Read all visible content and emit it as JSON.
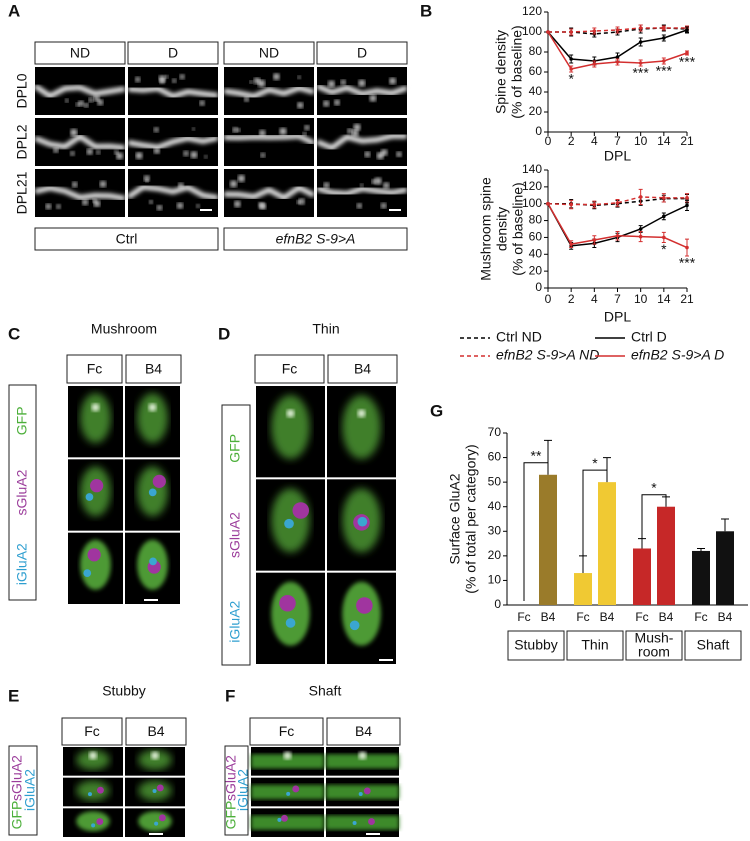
{
  "panel_labels": [
    "A",
    "B",
    "C",
    "D",
    "E",
    "F",
    "G"
  ],
  "panel_a": {
    "columns": [
      "ND",
      "D",
      "ND",
      "D"
    ],
    "rows": [
      "DPL0",
      "DPL2",
      "DPL21"
    ],
    "groups": [
      "Ctrl",
      "efnB2 S-9>A"
    ]
  },
  "panel_c": {
    "title": "Mushroom",
    "columns": [
      "Fc",
      "B4"
    ],
    "rows": [
      "GFP",
      "sGluA2",
      "iGluA2"
    ]
  },
  "panel_d": {
    "title": "Thin",
    "columns": [
      "Fc",
      "B4"
    ],
    "rows": [
      "GFP",
      "sGluA2",
      "iGluA2"
    ]
  },
  "panel_e": {
    "title": "Stubby",
    "columns": [
      "Fc",
      "B4"
    ],
    "rows": [
      "GFP",
      "sGluA2",
      "iGluA2"
    ]
  },
  "panel_f": {
    "title": "Shaft",
    "columns": [
      "Fc",
      "B4"
    ],
    "rows": [
      "GFP",
      "sGluA2",
      "iGluA2"
    ]
  },
  "chart_data": [
    {
      "type": "line",
      "y_label": [
        "Spine density",
        "(% of baseline)"
      ],
      "x_label": "DPL",
      "categories": [
        "0",
        "2",
        "4",
        "7",
        "10",
        "14",
        "21"
      ],
      "ylim": [
        0,
        120
      ],
      "yticks": [
        0,
        20,
        40,
        60,
        80,
        100,
        120
      ],
      "series": [
        {
          "name": "Ctrl ND",
          "color": "#000000",
          "dashed": true,
          "values": [
            100,
            100,
            98,
            100,
            103,
            104,
            103
          ],
          "errors": [
            0,
            4,
            3,
            3,
            4,
            3,
            3
          ]
        },
        {
          "name": "efnB2 S-9>A ND",
          "color": "#d32f2f",
          "dashed": true,
          "values": [
            100,
            100,
            101,
            102,
            104,
            104,
            104
          ],
          "errors": [
            0,
            3,
            3,
            3,
            3,
            2,
            2
          ]
        },
        {
          "name": "Ctrl D",
          "color": "#000000",
          "dashed": false,
          "values": [
            100,
            73,
            71,
            75,
            90,
            94,
            102
          ],
          "errors": [
            0,
            4,
            4,
            4,
            4,
            3,
            3
          ]
        },
        {
          "name": "efnB2 S-9>A D",
          "color": "#d32f2f",
          "dashed": false,
          "values": [
            100,
            63,
            68,
            70,
            69,
            71,
            79
          ],
          "errors": [
            0,
            3,
            3,
            3,
            3,
            3,
            2
          ]
        }
      ],
      "annotations": [
        {
          "text": "*",
          "x": "2"
        },
        {
          "text": "***",
          "x": "10"
        },
        {
          "text": "***",
          "x": "14"
        },
        {
          "text": "***",
          "x": "21"
        }
      ]
    },
    {
      "type": "line",
      "y_label": [
        "Mushroom spine",
        "density",
        "(% of baseline)"
      ],
      "x_label": "DPL",
      "categories": [
        "0",
        "2",
        "4",
        "7",
        "10",
        "14",
        "21"
      ],
      "ylim": [
        0,
        140
      ],
      "yticks": [
        0,
        20,
        40,
        60,
        80,
        100,
        120,
        140
      ],
      "series": [
        {
          "color": "#000000",
          "dashed": true,
          "values": [
            100,
            100,
            98,
            100,
            103,
            106,
            106
          ],
          "errors": [
            0,
            5,
            4,
            4,
            5,
            4,
            5
          ]
        },
        {
          "color": "#d32f2f",
          "dashed": true,
          "values": [
            100,
            99,
            99,
            101,
            108,
            107,
            107
          ],
          "errors": [
            0,
            5,
            4,
            4,
            9,
            5,
            5
          ]
        },
        {
          "color": "#000000",
          "dashed": false,
          "values": [
            100,
            50,
            53,
            60,
            70,
            85,
            98
          ],
          "errors": [
            0,
            4,
            5,
            5,
            4,
            4,
            6
          ]
        },
        {
          "color": "#d32f2f",
          "dashed": false,
          "values": [
            100,
            52,
            57,
            62,
            61,
            60,
            48
          ],
          "errors": [
            0,
            4,
            5,
            5,
            6,
            6,
            10
          ]
        }
      ],
      "annotations": [
        {
          "text": "*",
          "x": "14"
        },
        {
          "text": "***",
          "x": "21"
        }
      ]
    },
    {
      "type": "bar",
      "y_label": [
        "Surface GluA2",
        "(% of total per category)"
      ],
      "ylim": [
        0,
        70
      ],
      "yticks": [
        0,
        10,
        20,
        30,
        40,
        50,
        60,
        70
      ],
      "groups": [
        {
          "name": [
            "Stubby"
          ],
          "color": "#9a7b2a",
          "significance": "**",
          "bars": [
            {
              "label": "Fc",
              "value": 0,
              "error": null
            },
            {
              "label": "B4",
              "value": 53,
              "error": 14
            }
          ]
        },
        {
          "name": [
            "Thin"
          ],
          "color": "#f0c933",
          "significance": "*",
          "bars": [
            {
              "label": "Fc",
              "value": 13,
              "error": 7
            },
            {
              "label": "B4",
              "value": 50,
              "error": 10
            }
          ]
        },
        {
          "name": [
            "Mush-",
            "room"
          ],
          "color": "#c62828",
          "significance": "*",
          "bars": [
            {
              "label": "Fc",
              "value": 23,
              "error": 4
            },
            {
              "label": "B4",
              "value": 40,
              "error": 4
            }
          ]
        },
        {
          "name": [
            "Shaft"
          ],
          "color": "#111111",
          "significance": null,
          "bars": [
            {
              "label": "Fc",
              "value": 22,
              "error": 1
            },
            {
              "label": "B4",
              "value": 30,
              "error": 5
            }
          ]
        }
      ]
    }
  ]
}
